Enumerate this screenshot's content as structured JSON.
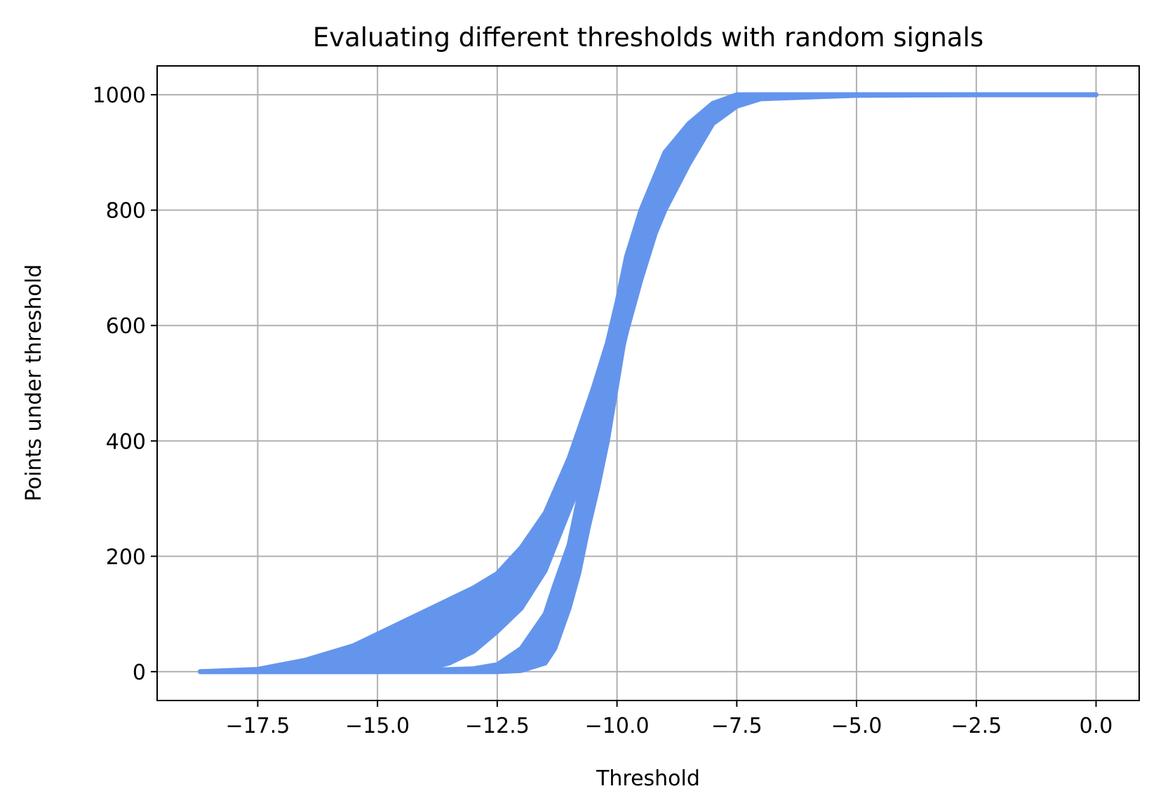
{
  "chart_data": {
    "type": "area",
    "title": "Evaluating different thresholds with random signals",
    "xlabel": "Threshold",
    "ylabel": "Points under threshold",
    "xlim": [
      -19.6,
      0.9
    ],
    "ylim": [
      -50,
      1050
    ],
    "xticks": [
      -17.5,
      -15.0,
      -12.5,
      -10.0,
      -7.5,
      -5.0,
      -2.5,
      0.0
    ],
    "xtick_labels": [
      "−17.5",
      "−15.0",
      "−12.5",
      "−10.0",
      "−7.5",
      "−5.0",
      "−2.5",
      "0.0"
    ],
    "yticks": [
      0,
      200,
      400,
      600,
      800,
      1000
    ],
    "ytick_labels": [
      "0",
      "200",
      "400",
      "600",
      "800",
      "1000"
    ],
    "grid": true,
    "color": "#6495ED",
    "bands": [
      {
        "x": [
          -18.7,
          -17.5,
          -16.5,
          -15.5,
          -15.0,
          -14.5,
          -14.0,
          -13.5,
          -13.0,
          -12.5,
          -12.0,
          -11.5,
          -11.0,
          -10.5,
          -10.2,
          -10.0,
          -9.8,
          -9.5,
          -9.2,
          -9.0,
          -8.5,
          -8.0,
          -7.5,
          -7.0,
          -5.0,
          -2.5,
          0.0
        ],
        "lower": [
          0,
          0,
          0,
          0,
          0,
          2,
          5,
          15,
          35,
          70,
          110,
          175,
          280,
          380,
          460,
          520,
          590,
          680,
          760,
          800,
          880,
          950,
          980,
          993,
          999,
          1000,
          1000
        ],
        "upper": [
          0,
          4,
          20,
          45,
          65,
          85,
          105,
          125,
          145,
          170,
          215,
          275,
          370,
          490,
          570,
          640,
          720,
          800,
          860,
          900,
          950,
          985,
          998,
          1000,
          1000,
          1000,
          1000
        ]
      },
      {
        "x": [
          -18.7,
          -15.0,
          -13.0,
          -12.5,
          -12.0,
          -11.5,
          -11.3,
          -11.0,
          -10.8,
          -10.6,
          -10.4,
          -10.2,
          -10.0,
          -9.8,
          -9.5,
          -9.0,
          -8.5,
          -8.0,
          -7.5,
          -5.0,
          0.0
        ],
        "lower": [
          0,
          0,
          0,
          0,
          2,
          15,
          40,
          110,
          170,
          250,
          320,
          400,
          500,
          600,
          700,
          830,
          920,
          970,
          993,
          1000,
          1000
        ],
        "upper": [
          0,
          0,
          5,
          12,
          40,
          100,
          150,
          220,
          300,
          370,
          430,
          490,
          560,
          640,
          730,
          850,
          940,
          985,
          1000,
          1000,
          1000
        ]
      }
    ]
  }
}
